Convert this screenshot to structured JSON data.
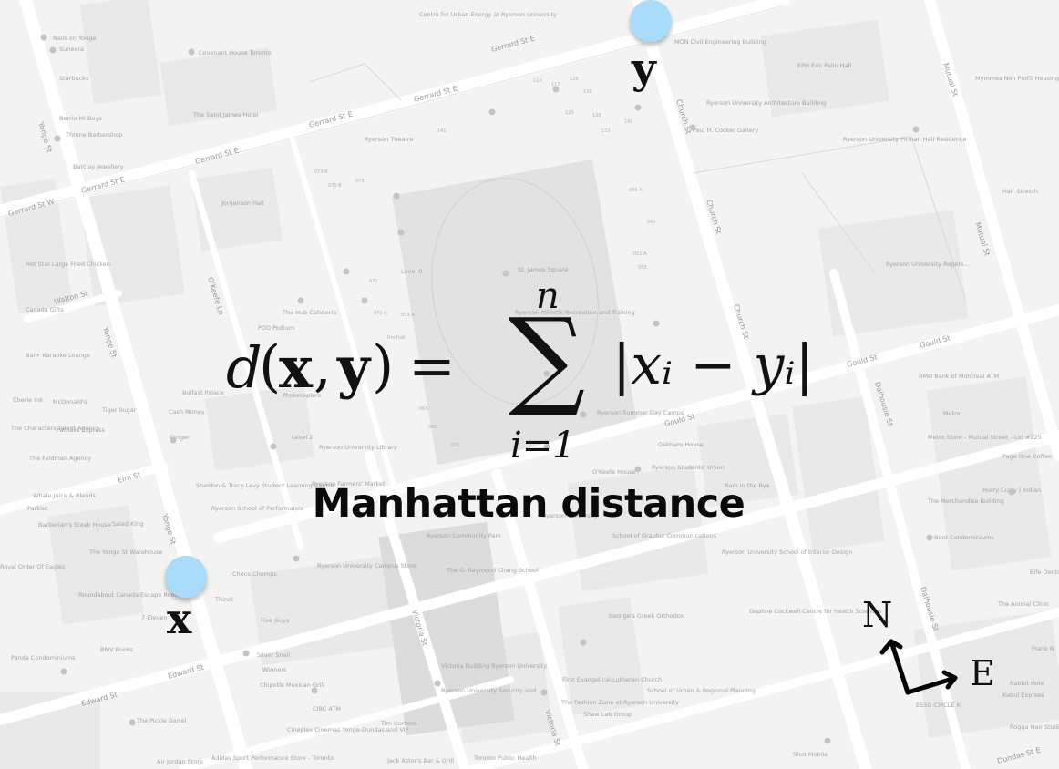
{
  "formula": {
    "lhs": "d(x, y)",
    "d": "d",
    "x": "x",
    "y": "y",
    "equals": "=",
    "sum_symbol": "∑",
    "upper": "n",
    "lower": "i=1",
    "summand": "|xᵢ − yᵢ|"
  },
  "caption": "Manhattan distance",
  "points": {
    "x_label": "x",
    "y_label": "y",
    "color": "#a8dcf8"
  },
  "compass": {
    "north": "N",
    "east": "E"
  },
  "map": {
    "streets": {
      "gerrard_1": "Gerrard St E",
      "gerrard_2": "Gerrard St E",
      "gerrard_3": "Gerrard St E",
      "gerrard_4": "Gerrard St E",
      "gerrard_5": "Gerrard St E",
      "gerrard_w": "Gerrard St W",
      "gould_1": "Gould St",
      "gould_2": "Gould St",
      "gould_3": "Gould St",
      "edward_1": "Edward St",
      "edward_2": "Edward St",
      "dundas": "Dundas St E",
      "elm": "Elm St",
      "walton": "Walton St",
      "yonge_1": "Yonge St",
      "yonge_2": "Yonge St",
      "yonge_3": "Yonge St",
      "church_1": "Church St",
      "church_2": "Church St",
      "church_3": "Church St",
      "mutual_1": "Mutual St",
      "mutual_2": "Mutual St",
      "dalhousie_1": "Dalhousie St",
      "dalhousie_2": "Dalhousie St",
      "victoria_1": "Victoria St",
      "victoria_2": "Victoria St",
      "okeefe": "O'Keefe Ln"
    },
    "places": {
      "p1": "Nails on Yonge",
      "p2": "Suneera",
      "p3": "Covenant House Toronto",
      "p4": "Starbucks",
      "p5": "Barrio Mi Boys",
      "p6": "Throne Barbershop",
      "p7": "Barclay Jewellery",
      "p8": "Centre for Urban Energy at Ryerson University",
      "p9": "MON Civil Engineering Building",
      "p10": "EPH Eric Palin Hall",
      "p11": "Ryerson University Architecture Building",
      "p12": "Paul H. Cocker Gallery",
      "p13": "Ryerson University Pitman Hall Residence",
      "p14": "Ryerson Theatre",
      "p15": "Jorgenson Hall",
      "p16": "The Saint James Hotel",
      "p17": "Hot Star Large Fried Chicken",
      "p18": "Canada Gifts",
      "p19": "The Hub Cafeteria",
      "p20": "POD Podium",
      "p21": "St. James Square",
      "p22": "Ryerson University Rogers...",
      "p23": "Bar+ Karaoke Lounge",
      "p24": "BMO Bank of Montreal ATM",
      "p25": "Cherie Ink",
      "p26": "McDonald's",
      "p27": "Tiger Sugar",
      "p28": "Bulfast Palace",
      "p29": "Cash Money",
      "p30": "Metro",
      "p31": "Metro Store - Mutual Street - Lot #225",
      "p32": "The Characters Talent Agency",
      "p33": "Pathaks Express",
      "p34": "Ginger",
      "p35": "The Feldman Agency",
      "p36": "Ryerson University Library",
      "p37": "Oakham House",
      "p38": "Ryerson Students' Union",
      "p39": "Ryerson Farmers' Market",
      "p40": "Ram in the Rye",
      "p41": "O'Keefe House",
      "p42": "Page One Coffee",
      "p43": "Hurry Curry | Indian",
      "p44": "Whale Juice & Blends",
      "p45": "Parklet",
      "p46": "Barberian's Steak House",
      "p47": "Salad King",
      "p48": "Sheldon & Tracy Levy Student Learning Centre",
      "p49": "Ryerson School of Performance",
      "p50": "The Yonge St Warehouse",
      "p51": "Choco Chomps",
      "p52": "Ryerson Community Park",
      "p53": "The G. Raymond Chang School",
      "p54": "Ryerson University Campus Store",
      "p55": "School of Graphic Communications",
      "p56": "Ryerson University School of Interior Design",
      "p57": "The Merchandise Building",
      "p58": "Boot Condominiums",
      "p59": "Roundabout Canada Escape Room",
      "p60": "Thindi",
      "p61": "Five Guys",
      "p62": "7-Eleven",
      "p63": "George's Greek Orthodox",
      "p64": "Daphne Cockwell Centre for Health Sciences",
      "p65": "The Animal Clinic",
      "p66": "Panda Condominiums",
      "p67": "BMV Books",
      "p68": "Silver Snail",
      "p69": "Winners",
      "p70": "Chipotle Mexican Grill",
      "p71": "Victoria Building Ryerson University",
      "p72": "Ryerson University Security and...",
      "p73": "First Evangelical Lutheran Church",
      "p74": "The Fashion Zone at Ryerson University",
      "p75": "School of Urban & Regional Planning",
      "p76": "CIBC ATM",
      "p77": "Tim Hortons",
      "p78": "Cineplex Cinemas Yonge-Dundas and VIP",
      "p79": "The Pickle Barrel",
      "p80": "Shaw Lab Group",
      "p81": "Air Jordan Store",
      "p82": "Adidas Sport Performance Store - Toronto",
      "p83": "Jack Astor's Bar & Grill",
      "p84": "Toronto Public Health",
      "p85": "Shot Mobile",
      "p86": "Rogga Hair Studio & Beauty Store",
      "p87": "Kabul Express",
      "p88": "ESSO CIRCLE K",
      "p89": "Hair Stretch",
      "p90": "Mymmes Non Profit Housing",
      "p91": "Rabbit Hole",
      "p92": "Frank N",
      "p93": "Bife Dents",
      "p94": "Ryerson Summer Day Camps",
      "p95": "Level 0",
      "p96": "Level 2",
      "p97": "Ryerson Athletic Recreation and Training",
      "p98": "Photocopiers",
      "p99": "Royal Order Of Eagles",
      "p100": "Ryerson University"
    }
  }
}
